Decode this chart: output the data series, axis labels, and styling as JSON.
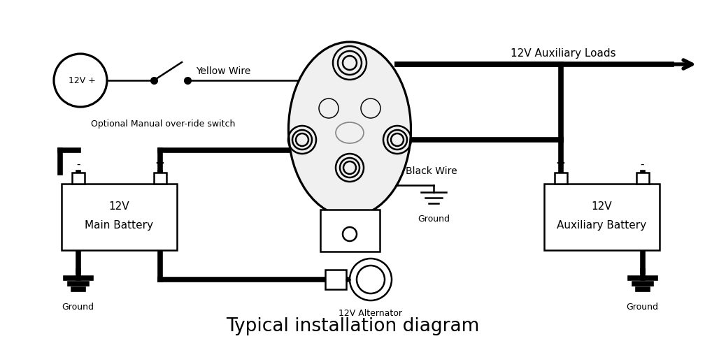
{
  "title": "Typical installation diagram",
  "title_fontsize": 19,
  "bg_color": "#ffffff",
  "lc": "#000000",
  "lw": 1.8,
  "tlw": 5.5,
  "ylw": 1.8,
  "fig_w": 10.08,
  "fig_h": 4.98,
  "dpi": 100,
  "labels": {
    "12v_src": "12V +",
    "optional": "Optional Manual over-ride switch",
    "yellow_wire": "Yellow Wire",
    "black_wire": "Black Wire",
    "main_bat_1": "12V",
    "main_bat_2": "Main Battery",
    "aux_bat_1": "12V",
    "aux_bat_2": "Auxiliary Battery",
    "alternator": "12V Alternator",
    "gnd_left": "Ground",
    "gnd_mid": "Ground",
    "gnd_right": "Ground",
    "aux_loads": "12V Auxiliary Loads"
  }
}
